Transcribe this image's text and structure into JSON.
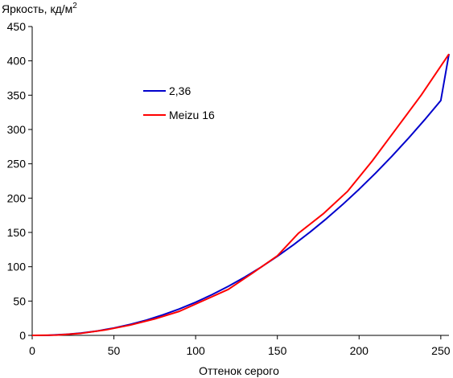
{
  "chart_data": {
    "type": "line",
    "title": "",
    "ylabel_main": "Яркость, кд/м",
    "ylabel_sup": "2",
    "xlabel": "Оттенок серого",
    "xlim": [
      0,
      255
    ],
    "ylim": [
      0,
      450
    ],
    "x_ticks": [
      0,
      50,
      100,
      150,
      200,
      250
    ],
    "y_ticks": [
      0,
      50,
      100,
      150,
      200,
      250,
      300,
      350,
      400,
      450
    ],
    "x_tick_labels": [
      "0",
      "50",
      "100",
      "150",
      "200",
      "250"
    ],
    "y_tick_labels": [
      "0",
      "50",
      "100",
      "150",
      "200",
      "250",
      "300",
      "350",
      "400",
      "450"
    ],
    "grid": false,
    "legend_position": "upper-left-inside",
    "series": [
      {
        "name": "2,36",
        "color": "#0000cc",
        "x": [
          0,
          10,
          20,
          30,
          40,
          50,
          60,
          70,
          80,
          90,
          100,
          110,
          120,
          130,
          140,
          150,
          160,
          170,
          180,
          190,
          200,
          210,
          220,
          230,
          240,
          250,
          255
        ],
        "y": [
          0,
          0.2,
          1.4,
          3.4,
          6.5,
          10.7,
          16,
          22.3,
          29.9,
          38.5,
          48.3,
          59.3,
          71.5,
          84.8,
          99.4,
          115.2,
          132.2,
          150.5,
          170,
          190.8,
          212.9,
          236.2,
          260.8,
          286.7,
          313.8,
          342.2,
          410
        ]
      },
      {
        "name": "Meizu 16",
        "color": "#ff0000",
        "x": [
          0,
          15,
          30,
          45,
          60,
          75,
          90,
          105,
          120,
          135,
          150,
          163,
          178,
          193,
          208,
          223,
          238,
          255
        ],
        "y": [
          0,
          0.5,
          3,
          8,
          15,
          24,
          35,
          51,
          67,
          91,
          116,
          149,
          177,
          210,
          254,
          302,
          350,
          410
        ]
      }
    ]
  }
}
